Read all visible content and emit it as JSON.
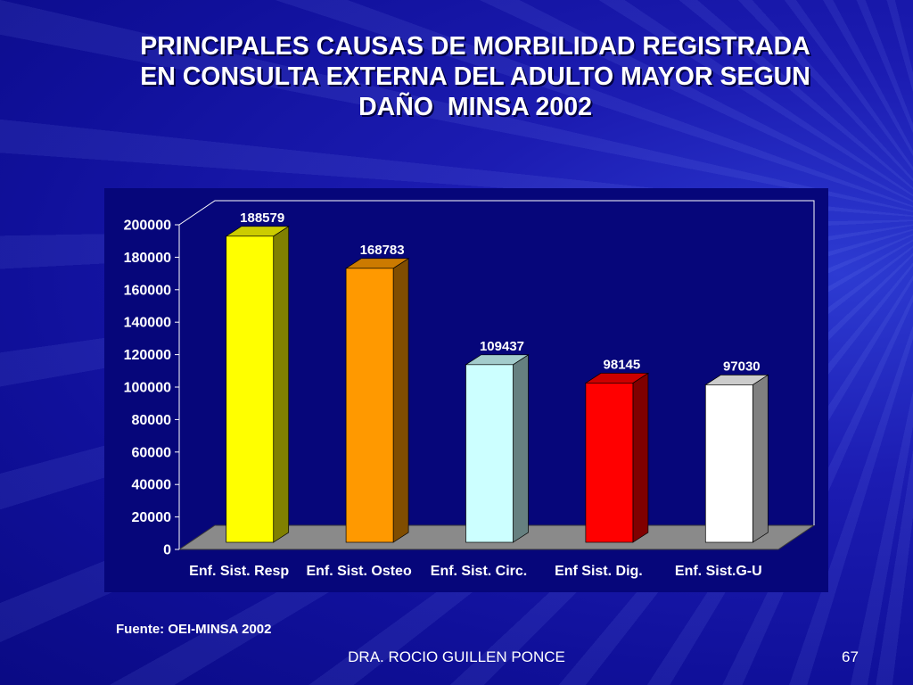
{
  "slide": {
    "title_lines": [
      "PRINCIPALES CAUSAS DE MORBILIDAD REGISTRADA",
      "EN CONSULTA EXTERNA DEL ADULTO MAYOR SEGUN",
      "DAÑO  MINSA 2002"
    ],
    "source": "Fuente: OEI-MINSA 2002",
    "author": "DRA. ROCIO GUILLEN PONCE",
    "page_number": "67"
  },
  "colors": {
    "chart_panel": "#06067a",
    "axis": "#ffffff",
    "floor": "#8a8a8a",
    "floor_edge": "#3a3a3a",
    "bar_edge": "#000000"
  },
  "chart_data": {
    "type": "bar",
    "style": "3d-column",
    "categories": [
      "Enf. Sist. Resp",
      "Enf. Sist. Osteo",
      "Enf. Sist. Circ.",
      "Enf Sist. Dig.",
      "Enf. Sist.G-U"
    ],
    "values": [
      188579,
      168783,
      109437,
      98145,
      97030
    ],
    "bar_colors": [
      "#ffff00",
      "#ff9900",
      "#ccffff",
      "#ff0000",
      "#ffffff"
    ],
    "ylim": [
      0,
      200000
    ],
    "yticks": [
      0,
      20000,
      40000,
      60000,
      80000,
      100000,
      120000,
      140000,
      160000,
      180000,
      200000
    ],
    "data_labels": true,
    "grid": false,
    "legend": "none"
  }
}
